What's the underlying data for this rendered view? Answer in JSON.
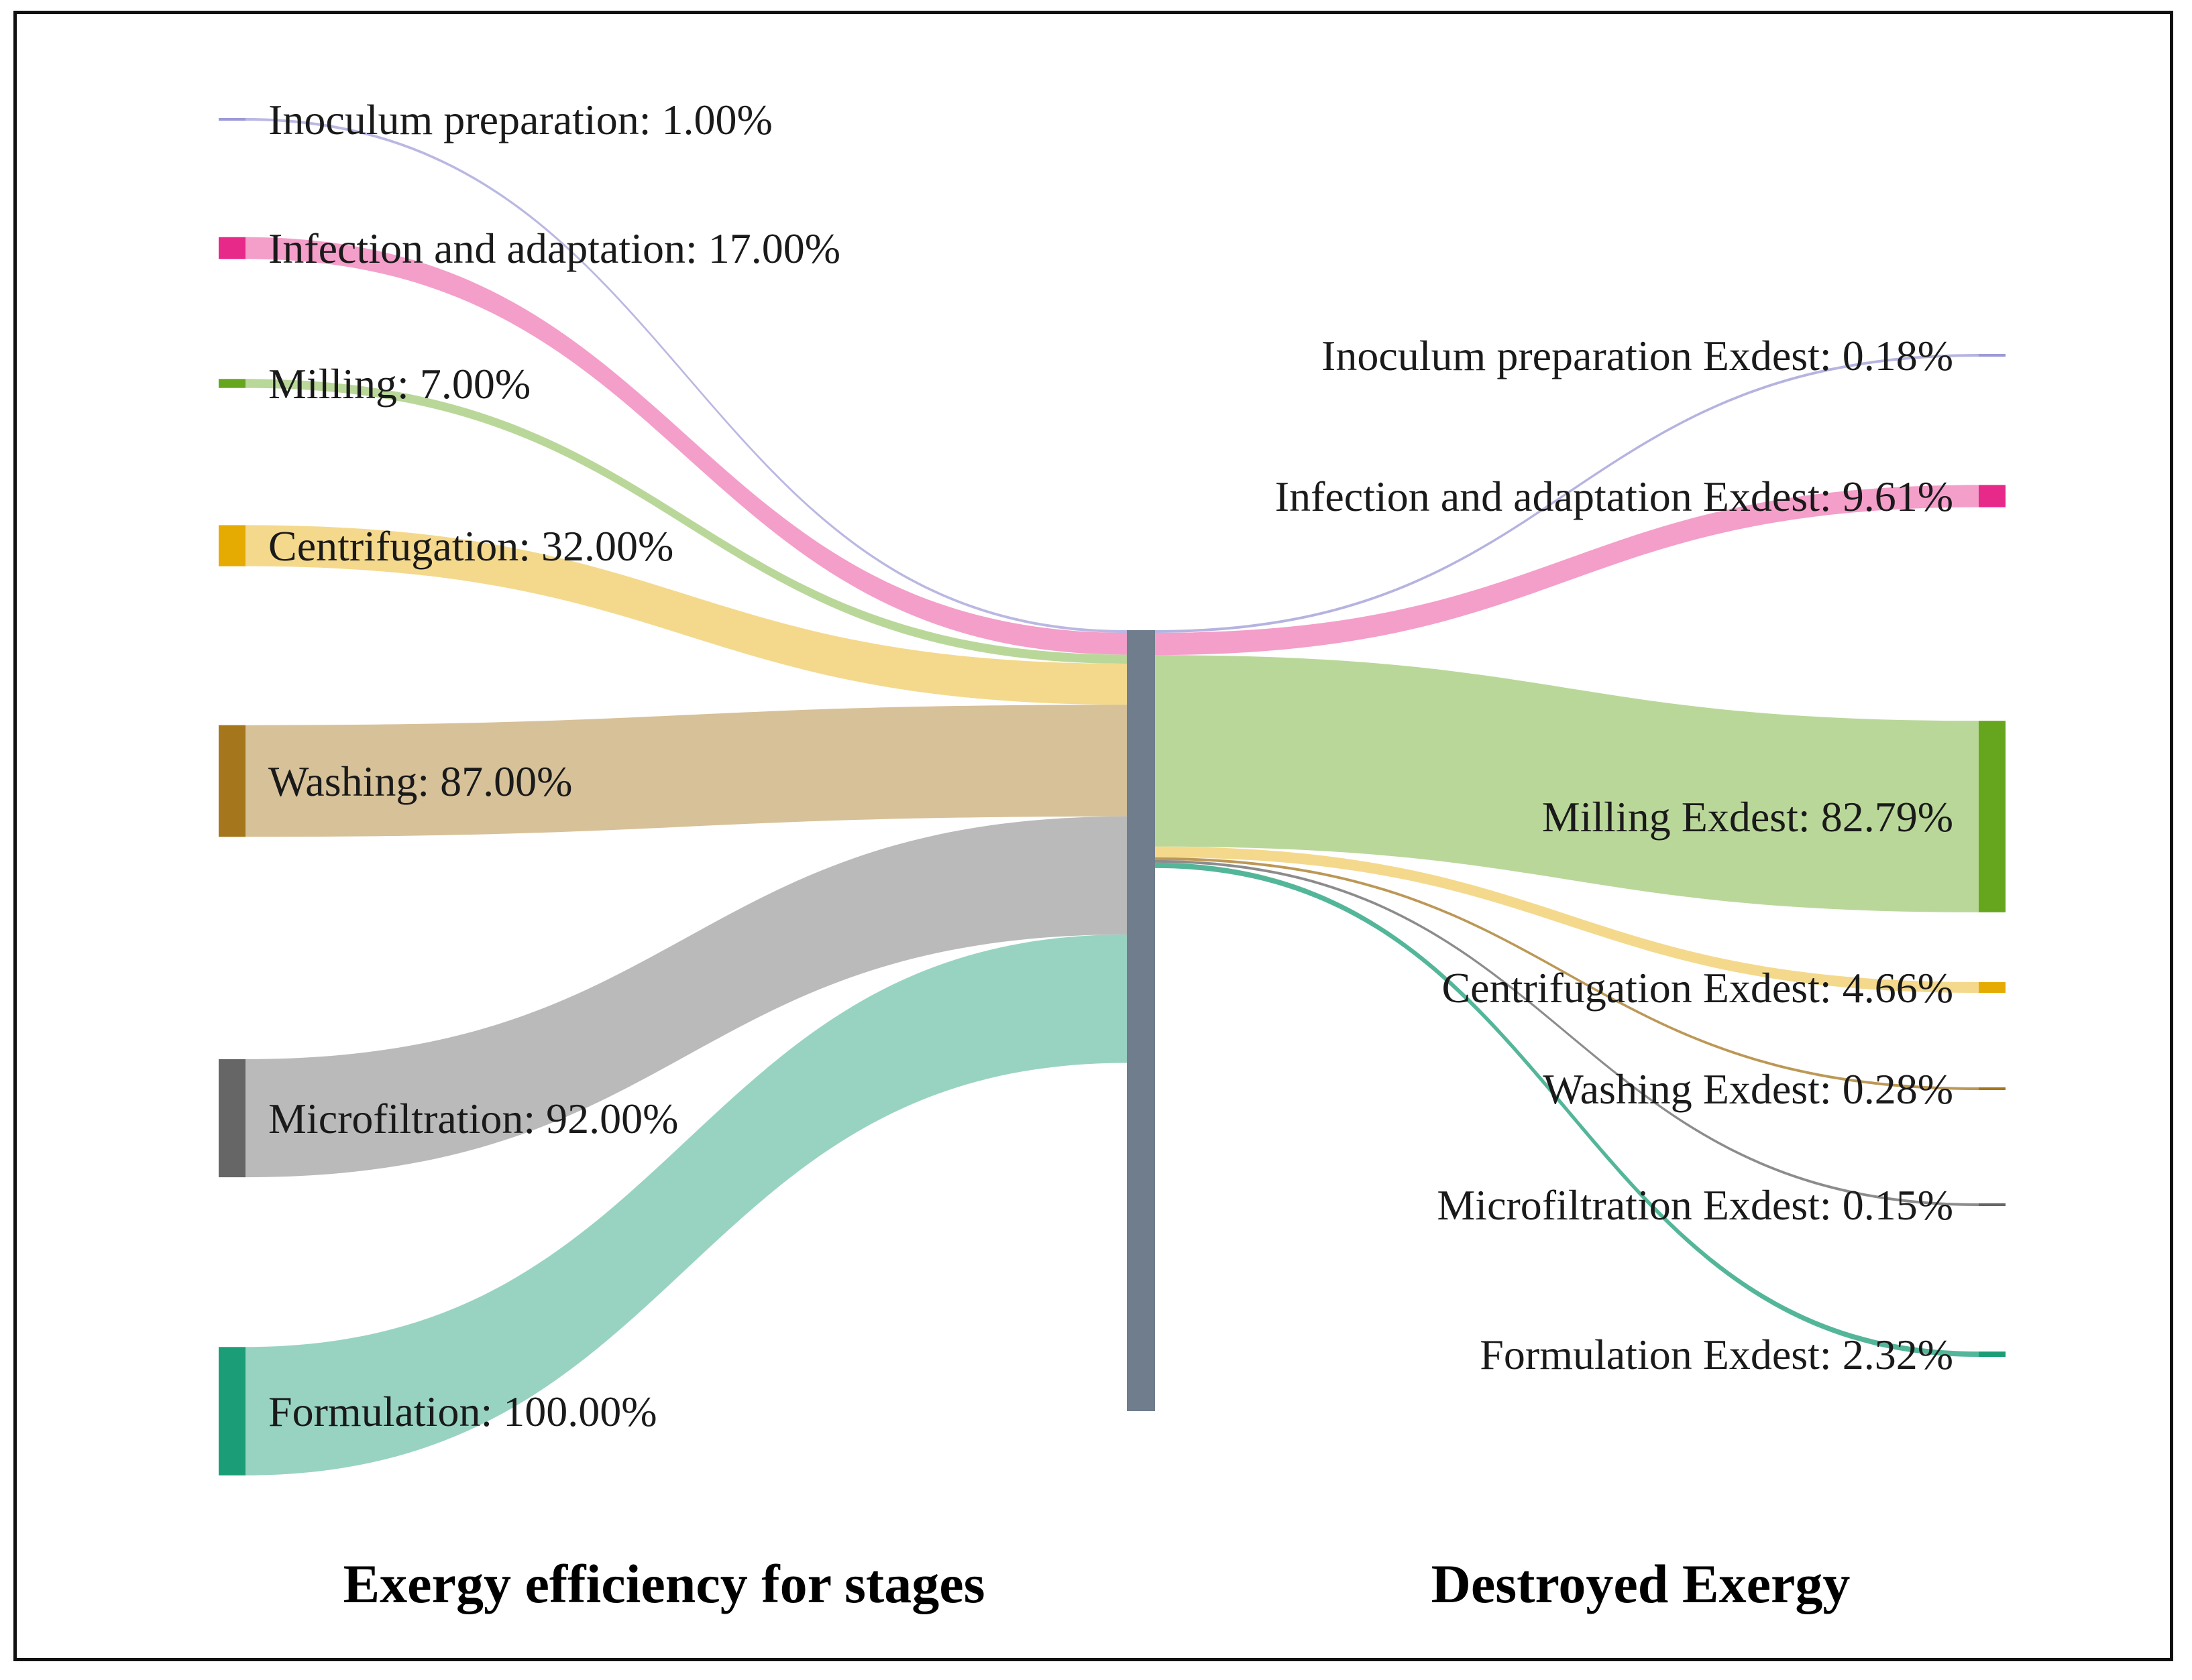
{
  "captions": {
    "left": "Exergy efficiency for stages",
    "right": "Destroyed Exergy"
  },
  "colors": {
    "hub": "#6f7d8c",
    "inoculum": "#9c9ad6",
    "infection": "#e7298a",
    "milling": "#66a61e",
    "centrifugation": "#e6ab02",
    "washing": "#a6761d",
    "microfiltration": "#666666",
    "formulation": "#1b9e77"
  },
  "chart_data": {
    "type": "sankey",
    "sources": [
      {
        "id": "inoculum",
        "label": "Inoculum preparation: 1.00%",
        "value": 1.0
      },
      {
        "id": "infection",
        "label": "Infection and adaptation: 17.00%",
        "value": 17.0
      },
      {
        "id": "milling",
        "label": "Milling: 7.00%",
        "value": 7.0
      },
      {
        "id": "centrifugation",
        "label": "Centrifugation: 32.00%",
        "value": 32.0
      },
      {
        "id": "washing",
        "label": "Washing: 87.00%",
        "value": 87.0
      },
      {
        "id": "microfiltration",
        "label": "Microfiltration: 92.00%",
        "value": 92.0
      },
      {
        "id": "formulation",
        "label": "Formulation: 100.00%",
        "value": 100.0
      }
    ],
    "targets": [
      {
        "id": "inoculum",
        "label": "Inoculum preparation Exdest: 0.18%",
        "value": 0.18
      },
      {
        "id": "infection",
        "label": "Infection and adaptation Exdest: 9.61%",
        "value": 9.61
      },
      {
        "id": "milling",
        "label": "Milling Exdest: 82.79%",
        "value": 82.79
      },
      {
        "id": "centrifugation",
        "label": "Centrifugation Exdest: 4.66%",
        "value": 4.66
      },
      {
        "id": "washing",
        "label": "Washing Exdest: 0.28%",
        "value": 0.28
      },
      {
        "id": "microfiltration",
        "label": "Microfiltration Exdest: 0.15%",
        "value": 0.15
      },
      {
        "id": "formulation",
        "label": "Formulation Exdest: 2.32%",
        "value": 2.32
      }
    ]
  }
}
